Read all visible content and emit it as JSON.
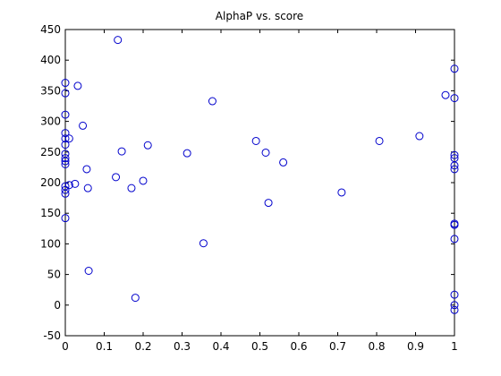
{
  "chart_data": {
    "type": "scatter",
    "title": "AlphaP vs. score",
    "xlabel": "",
    "ylabel": "",
    "xlim": [
      0,
      1
    ],
    "ylim": [
      -50,
      450
    ],
    "xticks": [
      0,
      0.1,
      0.2,
      0.3,
      0.4,
      0.5,
      0.6,
      0.7,
      0.8,
      0.9,
      1
    ],
    "xtick_labels": [
      "0",
      "0.1",
      "0.2",
      "0.3",
      "0.4",
      "0.5",
      "0.6",
      "0.7",
      "0.8",
      "0.9",
      "1"
    ],
    "yticks": [
      -50,
      0,
      50,
      100,
      150,
      200,
      250,
      300,
      350,
      400,
      450
    ],
    "ytick_labels": [
      "-50",
      "0",
      "50",
      "100",
      "150",
      "200",
      "250",
      "300",
      "350",
      "400",
      "450"
    ],
    "grid": false,
    "marker_color": "#0000cc",
    "points": [
      {
        "x": 0.0,
        "y": 363
      },
      {
        "x": 0.0,
        "y": 346
      },
      {
        "x": 0.0,
        "y": 311
      },
      {
        "x": 0.0,
        "y": 281
      },
      {
        "x": 0.0,
        "y": 272
      },
      {
        "x": 0.0,
        "y": 262
      },
      {
        "x": 0.0,
        "y": 247
      },
      {
        "x": 0.0,
        "y": 240
      },
      {
        "x": 0.0,
        "y": 235
      },
      {
        "x": 0.0,
        "y": 230
      },
      {
        "x": 0.0,
        "y": 194
      },
      {
        "x": 0.0,
        "y": 188
      },
      {
        "x": 0.0,
        "y": 182
      },
      {
        "x": 0.0,
        "y": 142
      },
      {
        "x": 0.01,
        "y": 272
      },
      {
        "x": 0.01,
        "y": 196
      },
      {
        "x": 0.025,
        "y": 198
      },
      {
        "x": 0.032,
        "y": 358
      },
      {
        "x": 0.045,
        "y": 293
      },
      {
        "x": 0.055,
        "y": 222
      },
      {
        "x": 0.058,
        "y": 191
      },
      {
        "x": 0.06,
        "y": 56
      },
      {
        "x": 0.13,
        "y": 209
      },
      {
        "x": 0.135,
        "y": 433
      },
      {
        "x": 0.145,
        "y": 251
      },
      {
        "x": 0.17,
        "y": 191
      },
      {
        "x": 0.18,
        "y": 12
      },
      {
        "x": 0.2,
        "y": 203
      },
      {
        "x": 0.212,
        "y": 261
      },
      {
        "x": 0.313,
        "y": 248
      },
      {
        "x": 0.355,
        "y": 101
      },
      {
        "x": 0.378,
        "y": 333
      },
      {
        "x": 0.49,
        "y": 268
      },
      {
        "x": 0.515,
        "y": 249
      },
      {
        "x": 0.522,
        "y": 167
      },
      {
        "x": 0.56,
        "y": 233
      },
      {
        "x": 0.71,
        "y": 184
      },
      {
        "x": 0.807,
        "y": 268
      },
      {
        "x": 0.91,
        "y": 276
      },
      {
        "x": 0.977,
        "y": 343
      },
      {
        "x": 1.0,
        "y": 386
      },
      {
        "x": 1.0,
        "y": 338
      },
      {
        "x": 1.0,
        "y": 245
      },
      {
        "x": 1.0,
        "y": 240
      },
      {
        "x": 1.0,
        "y": 228
      },
      {
        "x": 1.0,
        "y": 222
      },
      {
        "x": 1.0,
        "y": 133
      },
      {
        "x": 1.0,
        "y": 131
      },
      {
        "x": 1.0,
        "y": 108
      },
      {
        "x": 1.0,
        "y": 17
      },
      {
        "x": 1.0,
        "y": 0
      },
      {
        "x": 1.0,
        "y": -8
      }
    ]
  }
}
